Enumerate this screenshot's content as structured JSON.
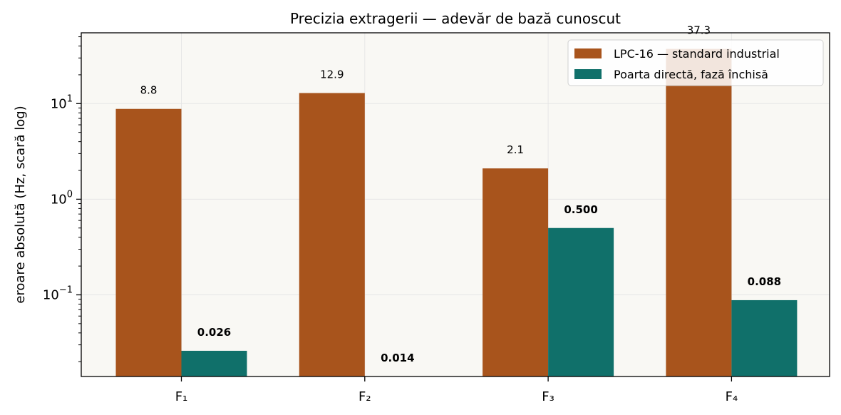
{
  "chart_data": {
    "type": "bar",
    "title": "Precizia extragerii — adevăr de bază cunoscut",
    "xlabel": "",
    "ylabel": "eroare absolută (Hz, scară log)",
    "yscale": "log",
    "ylim": [
      0.014,
      55
    ],
    "grid": true,
    "legend_position": "top-right",
    "categories": [
      "F₁",
      "F₂",
      "F₃",
      "F₄"
    ],
    "y_ticks": [
      {
        "value": 0.1,
        "base": "10",
        "exp": "−1"
      },
      {
        "value": 1,
        "base": "10",
        "exp": "0"
      },
      {
        "value": 10,
        "base": "10",
        "exp": "1"
      }
    ],
    "series": [
      {
        "name": "LPC-16 — standard industrial",
        "color": "#a8541c",
        "values": [
          8.8,
          12.9,
          2.1,
          37.3
        ],
        "labels": [
          "8.8",
          "12.9",
          "2.1",
          "37.3"
        ],
        "label_bold": false
      },
      {
        "name": "Poarta directă, fază închisă",
        "color": "#10706a",
        "values": [
          0.026,
          0.014,
          0.5,
          0.088
        ],
        "labels": [
          "0.026",
          "0.014",
          "0.500",
          "0.088"
        ],
        "label_bold": true
      }
    ],
    "plot_background": "#f9f8f4"
  }
}
